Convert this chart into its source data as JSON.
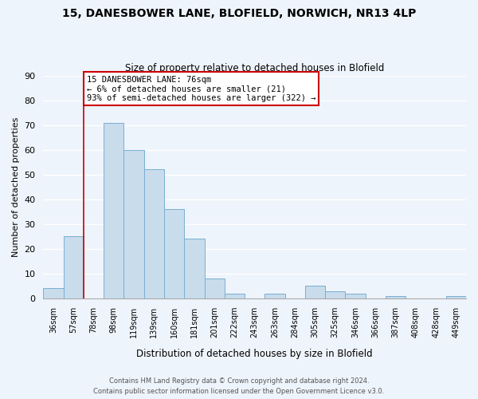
{
  "title": "15, DANESBOWER LANE, BLOFIELD, NORWICH, NR13 4LP",
  "subtitle": "Size of property relative to detached houses in Blofield",
  "xlabel": "Distribution of detached houses by size in Blofield",
  "ylabel": "Number of detached properties",
  "bar_color": "#c8dcec",
  "bar_edge_color": "#7aafd4",
  "background_color": "#eef4fb",
  "grid_color": "#ffffff",
  "bin_labels": [
    "36sqm",
    "57sqm",
    "78sqm",
    "98sqm",
    "119sqm",
    "139sqm",
    "160sqm",
    "181sqm",
    "201sqm",
    "222sqm",
    "243sqm",
    "263sqm",
    "284sqm",
    "305sqm",
    "325sqm",
    "346sqm",
    "366sqm",
    "387sqm",
    "408sqm",
    "428sqm",
    "449sqm"
  ],
  "bar_values": [
    4,
    25,
    0,
    71,
    60,
    52,
    36,
    24,
    8,
    2,
    0,
    2,
    0,
    5,
    3,
    2,
    0,
    1,
    0,
    0,
    1
  ],
  "ylim": [
    0,
    90
  ],
  "yticks": [
    0,
    10,
    20,
    30,
    40,
    50,
    60,
    70,
    80,
    90
  ],
  "vline_x_index": 2,
  "vline_color": "#cc0000",
  "annotation_title": "15 DANESBOWER LANE: 76sqm",
  "annotation_line1": "← 6% of detached houses are smaller (21)",
  "annotation_line2": "93% of semi-detached houses are larger (322) →",
  "footer1": "Contains HM Land Registry data © Crown copyright and database right 2024.",
  "footer2": "Contains public sector information licensed under the Open Government Licence v3.0."
}
